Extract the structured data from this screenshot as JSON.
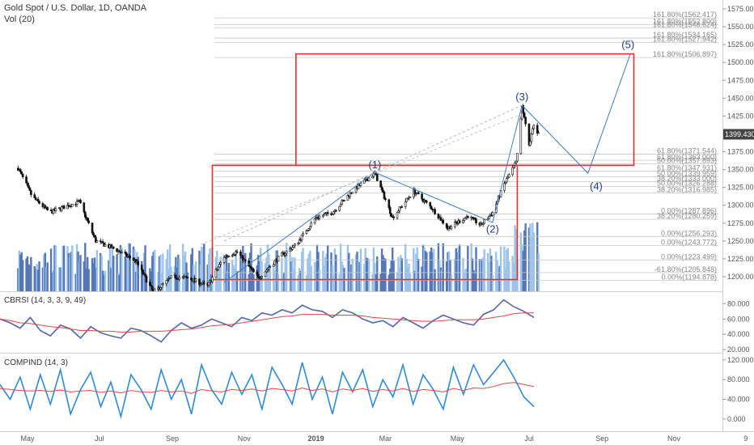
{
  "header": {
    "title": "Gold Spot / U.S. Dollar, 1D, OANDA",
    "vol_label": "Vol (20)"
  },
  "panels": {
    "cbrsi_label": "CBRSI (14, 3, 3, 9, 49)",
    "compind_label": "COMPIND (14, 3)"
  },
  "last_price_label": "1399.430",
  "colors": {
    "box": "#e03030",
    "wave": "#3a7ec8",
    "up_candle": "#ffffff",
    "down_candle": "#111111",
    "volume_up": "#9cc4ea",
    "volume_down": "#5577b8",
    "cbrsi_line": "#5566aa",
    "signal_red": "#e04848",
    "compind_blue": "#2f8ad8",
    "compind_green": "#6aaa6a",
    "tag_bg": "#444444"
  },
  "chart_data": [
    {
      "type": "candlestick",
      "title": "Gold Spot / U.S. Dollar, 1D, OANDA",
      "x_ticks": [
        "May",
        "Jul",
        "Sep",
        "Nov",
        "2019",
        "Mar",
        "May",
        "Jul",
        "Sep",
        "Nov",
        "9"
      ],
      "y_ticks": [
        1200,
        1225,
        1250,
        1275,
        1300,
        1325,
        1350,
        1375,
        1425,
        1450,
        1475,
        1500,
        1525,
        1550,
        1575
      ],
      "ylim": [
        1190,
        1580
      ],
      "last_price": 1399.43,
      "price_path": [
        [
          "2018-04-23",
          1352
        ],
        [
          "2018-05-05",
          1312
        ],
        [
          "2018-05-20",
          1290
        ],
        [
          "2018-06-05",
          1300
        ],
        [
          "2018-06-14",
          1305
        ],
        [
          "2018-06-28",
          1250
        ],
        [
          "2018-07-15",
          1238
        ],
        [
          "2018-08-01",
          1222
        ],
        [
          "2018-08-16",
          1178
        ],
        [
          "2018-09-01",
          1200
        ],
        [
          "2018-09-15",
          1198
        ],
        [
          "2018-10-01",
          1187
        ],
        [
          "2018-10-15",
          1228
        ],
        [
          "2018-10-26",
          1235
        ],
        [
          "2018-11-13",
          1198
        ],
        [
          "2018-12-01",
          1228
        ],
        [
          "2018-12-15",
          1245
        ],
        [
          "2019-01-01",
          1283
        ],
        [
          "2019-01-15",
          1290
        ],
        [
          "2019-02-01",
          1320
        ],
        [
          "2019-02-20",
          1345
        ],
        [
          "2019-03-07",
          1283
        ],
        [
          "2019-03-25",
          1320
        ],
        [
          "2019-04-10",
          1295
        ],
        [
          "2019-04-23",
          1268
        ],
        [
          "2019-05-10",
          1285
        ],
        [
          "2019-05-21",
          1272
        ],
        [
          "2019-05-31",
          1290
        ],
        [
          "2019-06-10",
          1330
        ],
        [
          "2019-06-20",
          1360
        ],
        [
          "2019-06-25",
          1439
        ],
        [
          "2019-07-01",
          1385
        ],
        [
          "2019-07-05",
          1412
        ],
        [
          "2019-07-09",
          1399
        ]
      ],
      "wave_labels": [
        {
          "label": "(1)",
          "x": "2019-02-20",
          "y": 1352
        },
        {
          "label": "(2)",
          "x": "2019-05-31",
          "y": 1262
        },
        {
          "label": "(3)",
          "x": "2019-06-25",
          "y": 1447
        },
        {
          "label": "(4)",
          "x": "2019-08-27",
          "y": 1322
        },
        {
          "label": "(5)",
          "x": "2019-09-23",
          "y": 1520
        }
      ],
      "wave_path": [
        [
          "2018-10-15",
          1192
        ],
        [
          "2019-02-20",
          1346
        ],
        [
          "2019-05-31",
          1276
        ],
        [
          "2019-06-25",
          1440
        ],
        [
          "2019-08-20",
          1345
        ],
        [
          "2019-09-25",
          1512
        ]
      ],
      "boxes": [
        {
          "x0": "2018-10-05",
          "x1": "2019-06-21",
          "y0": 1196,
          "y1": 1356
        },
        {
          "x0": "2018-12-15",
          "x1": "2019-09-28",
          "y0": 1356,
          "y1": 1512
        }
      ],
      "fib_levels": [
        {
          "label": "161.80%(1562.417)",
          "y": 1562.417
        },
        {
          "label": "161.80%(1552.800)",
          "y": 1552.8
        },
        {
          "label": "161.80%(1548.624)",
          "y": 1548.624
        },
        {
          "label": "161.80%(1534.165)",
          "y": 1534.165
        },
        {
          "label": "161.80%(1527.942)",
          "y": 1527.942
        },
        {
          "label": "161.80%(1506.897)",
          "y": 1506.897
        },
        {
          "label": "61.80%(1371.544)",
          "y": 1371.544
        },
        {
          "label": "61.80%(1363.000)",
          "y": 1363.0
        },
        {
          "label": "50.00%(1357.893)",
          "y": 1357.893
        },
        {
          "label": "61.80%(1347.931)",
          "y": 1347.931
        },
        {
          "label": "50.00%(1339.959)",
          "y": 1339.959
        },
        {
          "label": "38.20%(1333.000)",
          "y": 1333.0
        },
        {
          "label": "50.00%(1326.288)",
          "y": 1326.288
        },
        {
          "label": "38.20%(1316.985)",
          "y": 1316.985
        },
        {
          "label": "0.00%(1287.896)",
          "y": 1287.896
        },
        {
          "label": "38.20%(1280.259)",
          "y": 1280.259
        },
        {
          "label": "0.00%(1256.293)",
          "y": 1256.293
        },
        {
          "label": "0.00%(1243.772)",
          "y": 1243.772
        },
        {
          "label": "0.00%(1223.499)",
          "y": 1223.499
        },
        {
          "label": "-61.80%(1205.848)",
          "y": 1205.848
        },
        {
          "label": "0.00%(1194.878)",
          "y": 1194.878
        }
      ]
    },
    {
      "type": "line",
      "title": "CBRSI (14, 3, 3, 9, 49)",
      "y_ticks": [
        20,
        40,
        60,
        80
      ],
      "ylim": [
        18,
        92
      ],
      "series": [
        {
          "values": [
            60,
            55,
            48,
            62,
            45,
            38,
            52,
            47,
            35,
            50,
            42,
            38,
            35,
            48,
            45,
            38,
            30,
            45,
            55,
            48,
            52,
            60,
            55,
            50,
            62,
            58,
            68,
            65,
            72,
            68,
            78,
            72,
            70,
            62,
            72,
            68,
            60,
            55,
            58,
            50,
            62,
            55,
            48,
            58,
            65,
            60,
            55,
            52,
            66,
            72,
            85,
            76,
            70,
            62
          ]
        },
        {
          "values": [
            60,
            58,
            55,
            54,
            52,
            50,
            49,
            47,
            45,
            45,
            44,
            44,
            43,
            43,
            44,
            44,
            44,
            45,
            46,
            47,
            49,
            51,
            52,
            53,
            55,
            57,
            59,
            61,
            63,
            64,
            66,
            66,
            66,
            65,
            65,
            65,
            64,
            62,
            61,
            60,
            59,
            58,
            57,
            57,
            58,
            59,
            59,
            59,
            60,
            62,
            64,
            67,
            68,
            68
          ]
        }
      ]
    },
    {
      "type": "line",
      "title": "COMPIND (14, 3)",
      "y_ticks": [
        0,
        40,
        80,
        120
      ],
      "ylim": [
        -20,
        128
      ],
      "series": [
        {
          "values": [
            70,
            40,
            85,
            20,
            90,
            30,
            100,
            10,
            60,
            95,
            25,
            75,
            5,
            90,
            60,
            20,
            100,
            40,
            80,
            10,
            110,
            60,
            30,
            95,
            50,
            90,
            20,
            105,
            70,
            30,
            115,
            40,
            85,
            10,
            95,
            55,
            100,
            25,
            80,
            45,
            110,
            30,
            90,
            60,
            20,
            105,
            50,
            110,
            70,
            95,
            120,
            85,
            45,
            25
          ]
        },
        {
          "values": [
            62,
            60,
            58,
            57,
            58,
            56,
            59,
            55,
            57,
            58,
            54,
            57,
            53,
            58,
            55,
            54,
            58,
            55,
            57,
            52,
            60,
            57,
            55,
            60,
            58,
            61,
            57,
            62,
            60,
            57,
            63,
            58,
            61,
            55,
            61,
            58,
            62,
            56,
            60,
            57,
            62,
            56,
            60,
            58,
            55,
            62,
            58,
            63,
            62,
            66,
            72,
            74,
            70,
            66
          ]
        }
      ]
    }
  ]
}
